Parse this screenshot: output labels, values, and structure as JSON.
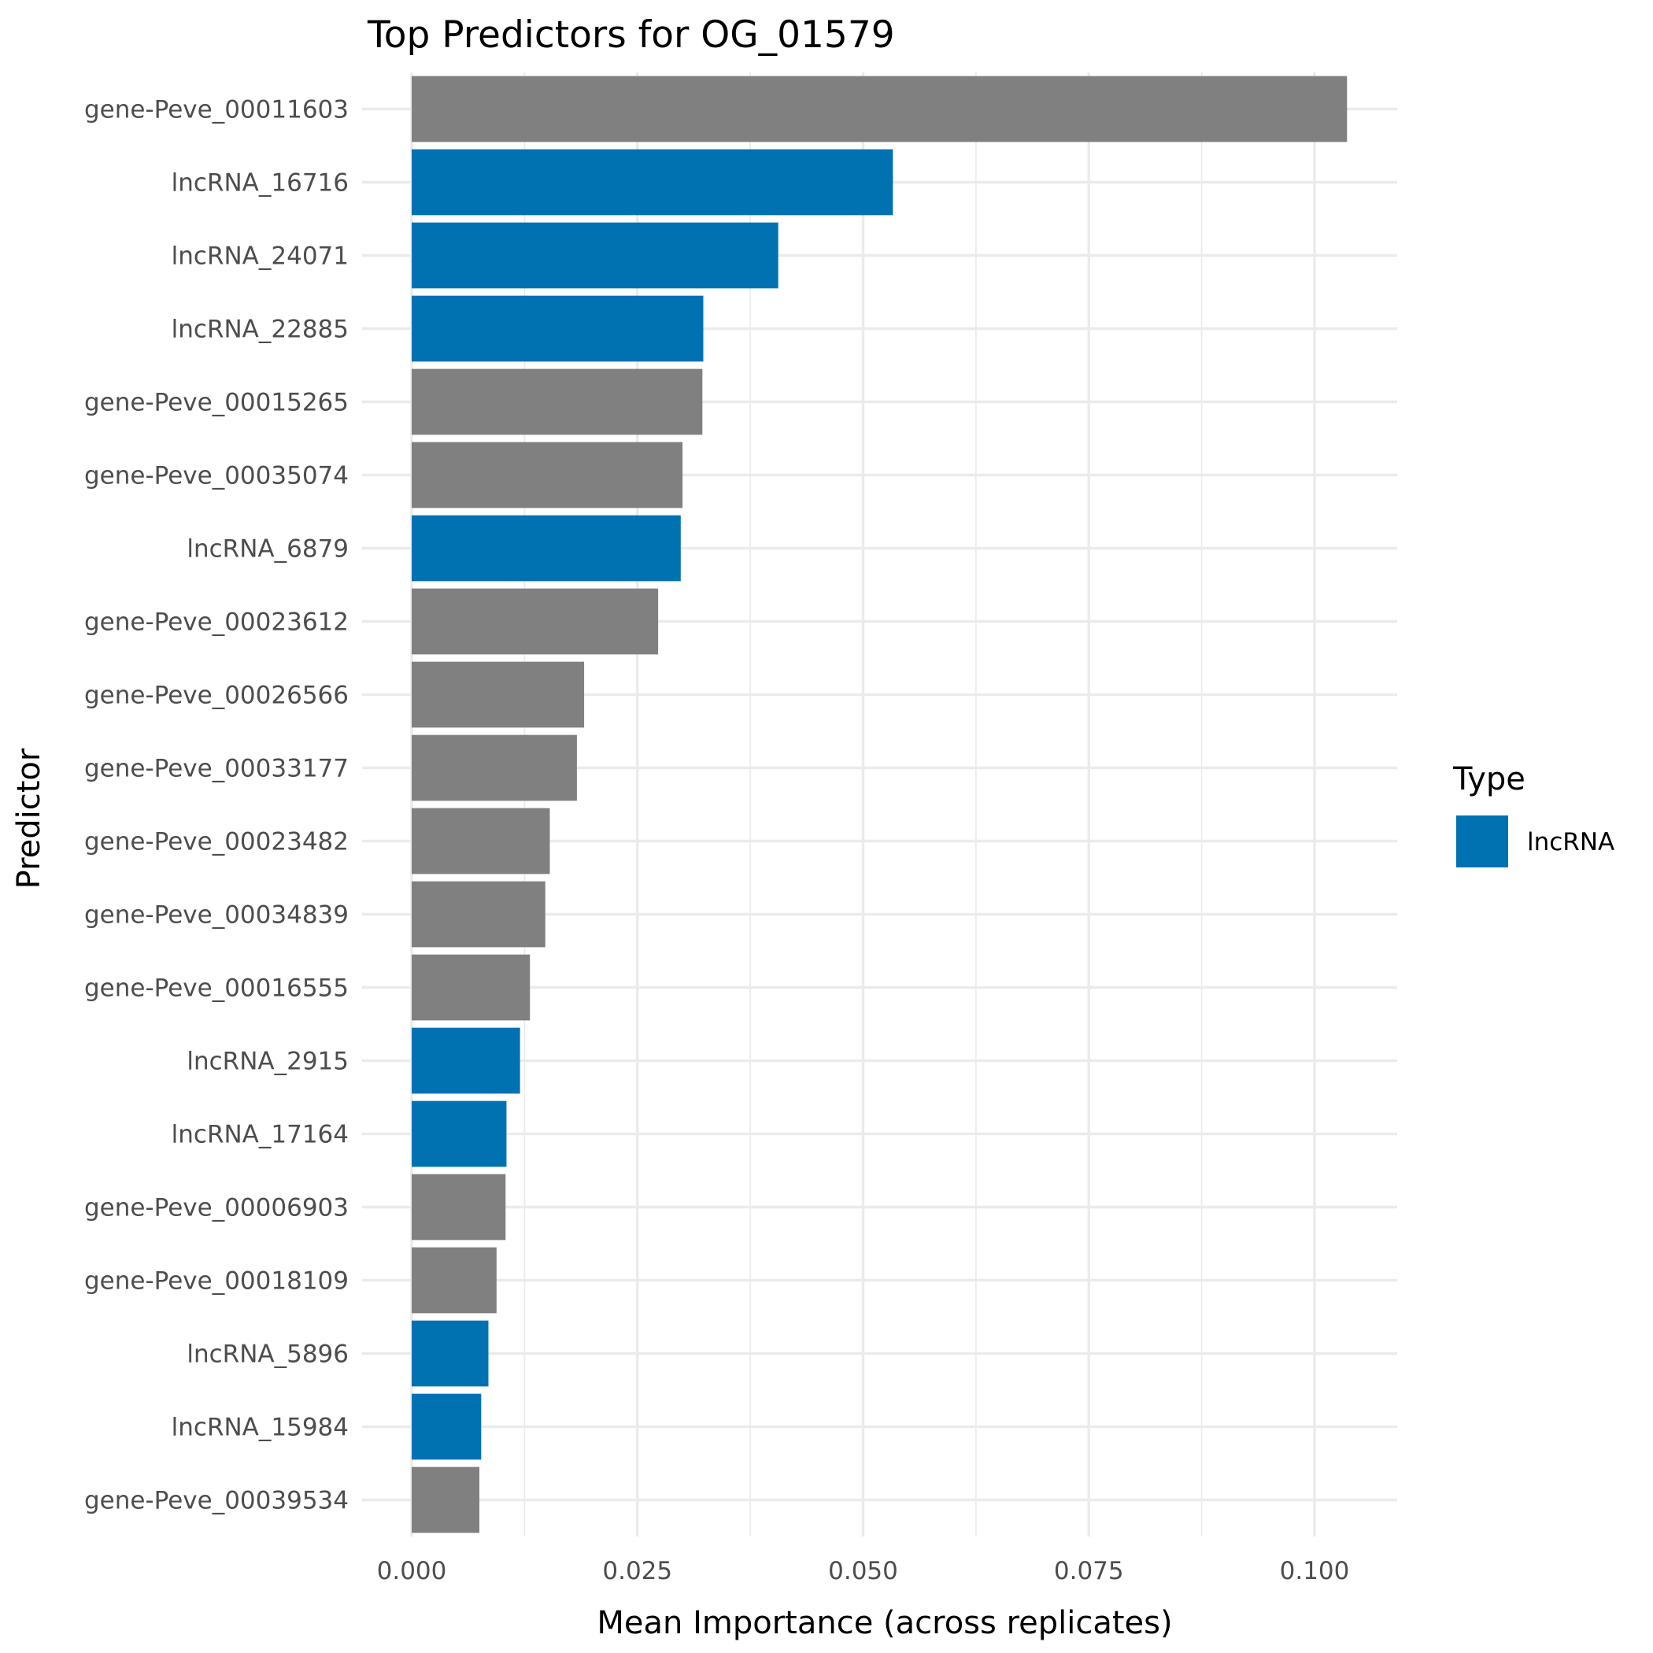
{
  "chart_data": {
    "type": "bar",
    "orientation": "horizontal",
    "title": "Top Predictors for OG_01579",
    "xlabel": "Mean Importance (across replicates)",
    "ylabel": "Predictor",
    "xlim": [
      0,
      0.105
    ],
    "x_ticks": [
      "0.000",
      "0.025",
      "0.050",
      "0.075",
      "0.100"
    ],
    "x_tick_values": [
      0,
      0.025,
      0.05,
      0.075,
      0.1
    ],
    "grid": true,
    "categories": [
      "gene-Peve_00011603",
      "lncRNA_16716",
      "lncRNA_24071",
      "lncRNA_22885",
      "gene-Peve_00015265",
      "gene-Peve_00035074",
      "lncRNA_6879",
      "gene-Peve_00023612",
      "gene-Peve_00026566",
      "gene-Peve_00033177",
      "gene-Peve_00023482",
      "gene-Peve_00034839",
      "gene-Peve_00016555",
      "lncRNA_2915",
      "lncRNA_17164",
      "gene-Peve_00006903",
      "gene-Peve_00018109",
      "lncRNA_5896",
      "lncRNA_15984",
      "gene-Peve_00039534"
    ],
    "values": [
      0.1036,
      0.0533,
      0.0406,
      0.0323,
      0.0322,
      0.03,
      0.0298,
      0.0273,
      0.0191,
      0.0183,
      0.0153,
      0.0148,
      0.0131,
      0.012,
      0.0105,
      0.0104,
      0.0094,
      0.0085,
      0.0077,
      0.0075
    ],
    "types": [
      "gene",
      "lncRNA",
      "lncRNA",
      "lncRNA",
      "gene",
      "gene",
      "lncRNA",
      "gene",
      "gene",
      "gene",
      "gene",
      "gene",
      "gene",
      "lncRNA",
      "lncRNA",
      "gene",
      "gene",
      "lncRNA",
      "lncRNA",
      "gene"
    ],
    "colors": {
      "lncRNA": "#0072b2",
      "gene": "#808080"
    },
    "legend": {
      "title": "Type",
      "position": "right",
      "entries": [
        {
          "label": "lncRNA",
          "color": "#0072b2"
        }
      ]
    }
  }
}
